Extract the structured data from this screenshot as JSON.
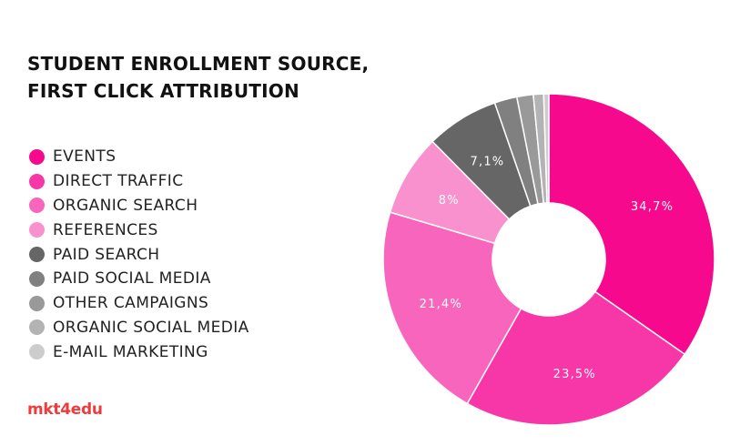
{
  "title": {
    "line1": "STUDENT ENROLLMENT SOURCE,",
    "line2": "FIRST CLICK ATTRIBUTION"
  },
  "brand": {
    "logo_text": "mkt4edu",
    "color": "#ef3b3b"
  },
  "chart_data": {
    "type": "pie",
    "style": "donut",
    "title": "STUDENT ENROLLMENT SOURCE, FIRST CLICK ATTRIBUTION",
    "legend_position": "left",
    "categories": [
      "EVENTS",
      "DIRECT TRAFFIC",
      "ORGANIC SEARCH",
      "REFERENCES",
      "PAID SEARCH",
      "PAID SOCIAL MEDIA",
      "OTHER CAMPAIGNS",
      "ORGANIC SOCIAL MEDIA",
      "E-MAIL MARKETING"
    ],
    "values": [
      34.7,
      23.5,
      21.4,
      8,
      7.1,
      2.2,
      1.6,
      1.0,
      0.5
    ],
    "labels": [
      "34,7%",
      "23,5%",
      "21,4%",
      "8%",
      "7,1%",
      "",
      "",
      "",
      ""
    ],
    "colors": [
      "#f7098d",
      "#f737a7",
      "#f865bd",
      "#f891ce",
      "#666666",
      "#808080",
      "#999999",
      "#b3b3b3",
      "#cccccc"
    ]
  }
}
